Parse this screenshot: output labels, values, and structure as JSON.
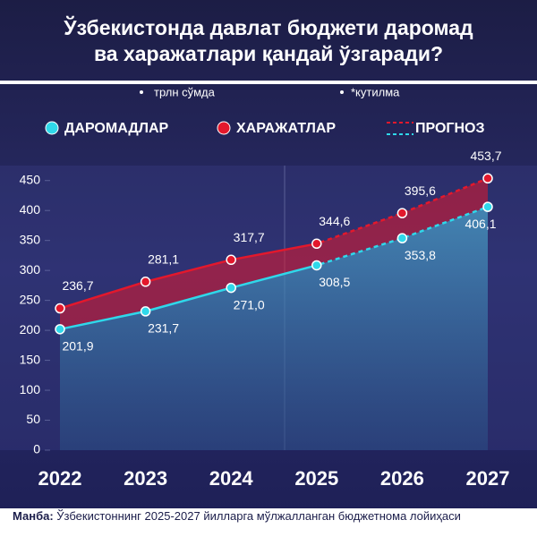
{
  "chart_data": {
    "type": "line",
    "title": [
      "Ўзбекистонда давлат бюджети даромад",
      "ва харажатлари қандай ўзгаради?"
    ],
    "notes": [
      "трлн сўмда",
      "*кутилма"
    ],
    "forecast_label": "ПРОГНОЗ",
    "forecast_from": "2025",
    "categories": [
      "2022",
      "2023",
      "2024",
      "2025",
      "2026",
      "2027"
    ],
    "series": [
      {
        "name": "ДАРОМАДЛАР",
        "color": "#2fd8ea",
        "values": [
          201.9,
          231.7,
          271.0,
          308.5,
          353.8,
          406.1
        ],
        "value_labels": [
          "201,9",
          "231,7",
          "271,0",
          "308,5",
          "353,8",
          "406,1"
        ]
      },
      {
        "name": "ХАРАЖАТЛАР",
        "color": "#e3182c",
        "values": [
          236.7,
          281.1,
          317.7,
          344.6,
          395.6,
          453.7
        ],
        "value_labels": [
          "236,7",
          "281,1",
          "317,7",
          "344,6",
          "395,6",
          "453,7"
        ]
      }
    ],
    "ylim": [
      0,
      475
    ],
    "yticks": [
      0,
      50,
      100,
      150,
      200,
      250,
      300,
      350,
      400,
      450
    ],
    "source_label": "Манба:",
    "source": "Ўзбекистоннинг 2025-2027 йилларга мўлжалланган бюджетнома лойиҳаси"
  }
}
